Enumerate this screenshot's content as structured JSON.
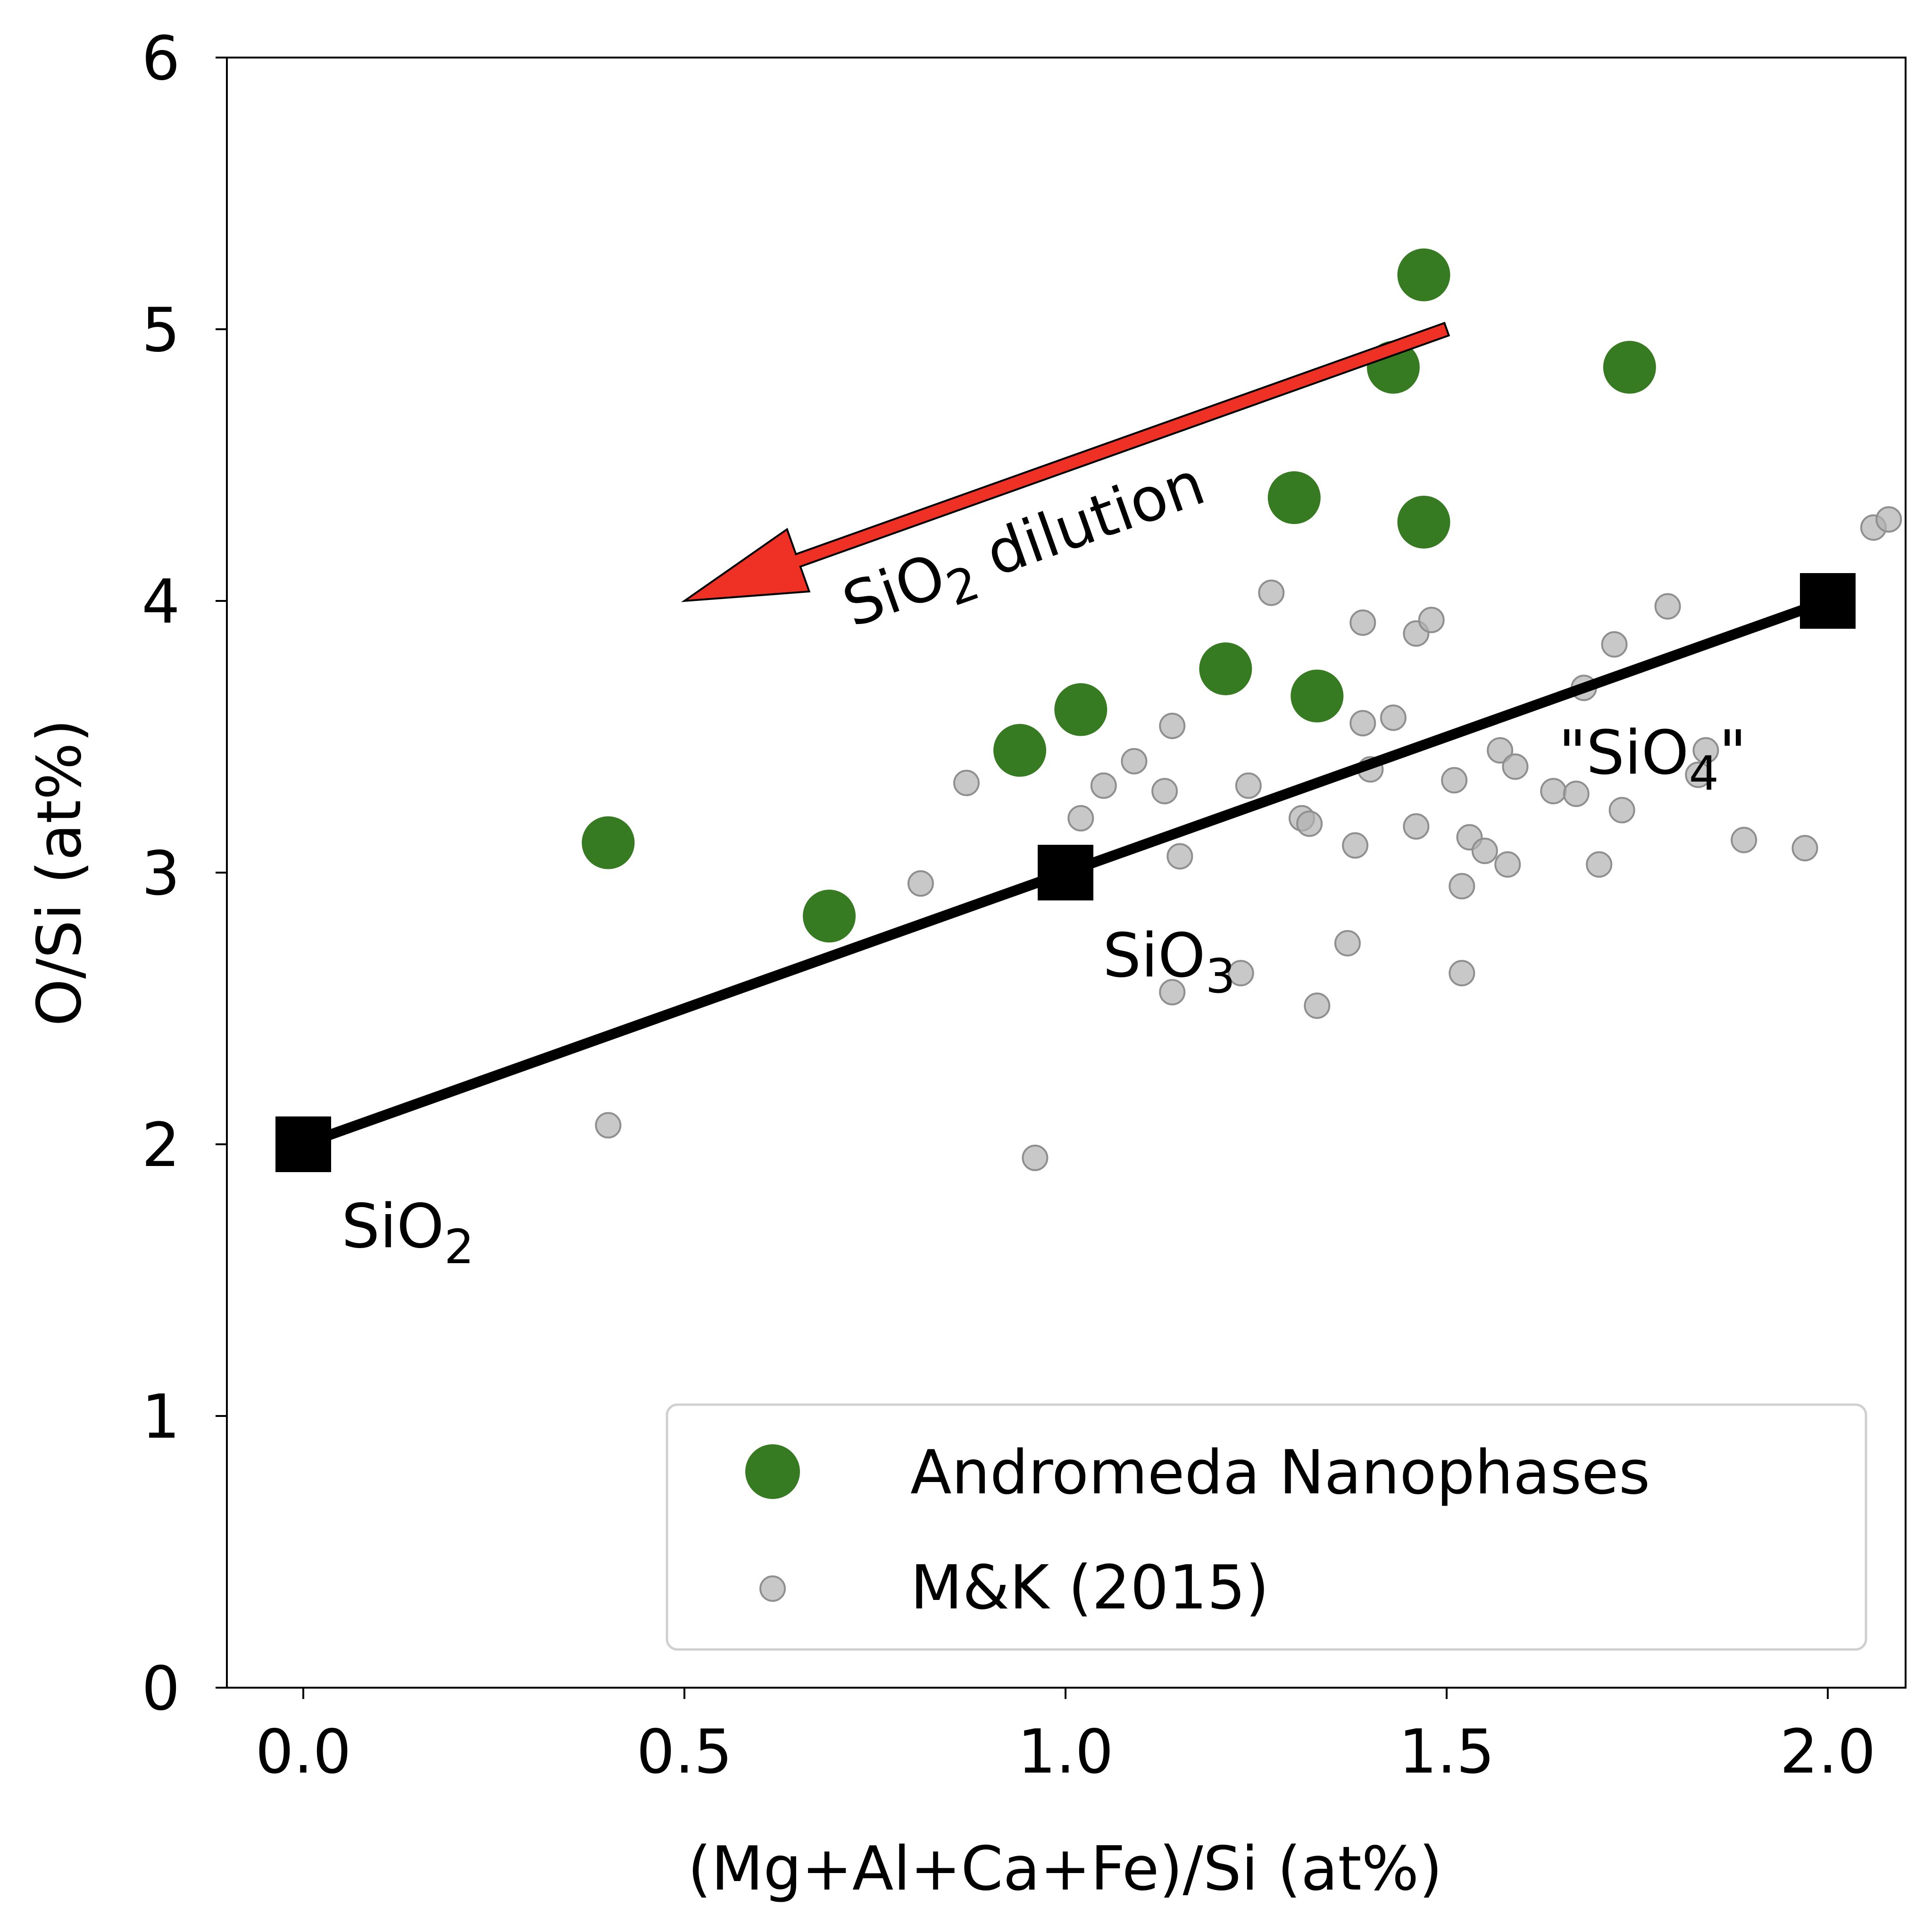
{
  "chart_data": {
    "type": "scatter",
    "title": "",
    "xlabel": "(Mg+Al+Ca+Fe)/Si (at%)",
    "ylabel": "O/Si (at%)",
    "xlim": [
      -0.1,
      2.1
    ],
    "ylim": [
      0,
      6
    ],
    "xticks": [
      0.0,
      0.5,
      1.0,
      1.5,
      2.0
    ],
    "xtick_labels": [
      "0.0",
      "0.5",
      "1.0",
      "1.5",
      "2.0"
    ],
    "yticks": [
      0,
      1,
      2,
      3,
      4,
      5,
      6
    ],
    "ytick_labels": [
      "0",
      "1",
      "2",
      "3",
      "4",
      "5",
      "6"
    ],
    "grid": false,
    "legend_position": "bottom-right",
    "series": [
      {
        "name": "Andromeda Nanophases",
        "color": "#367a21",
        "marker": "circle-large",
        "x": [
          0.4,
          0.69,
          0.94,
          1.02,
          1.21,
          1.3,
          1.33,
          1.43,
          1.47,
          1.47,
          1.74
        ],
        "y": [
          3.11,
          2.84,
          3.45,
          3.6,
          3.75,
          4.38,
          3.65,
          4.86,
          5.2,
          4.29,
          4.86
        ]
      },
      {
        "name": "M&K (2015)",
        "color": "#b0b0b0",
        "marker": "circle-small",
        "x": [
          0.4,
          0.81,
          0.87,
          0.96,
          1.02,
          1.05,
          1.09,
          1.13,
          1.14,
          1.14,
          1.15,
          1.23,
          1.24,
          1.27,
          1.31,
          1.32,
          1.33,
          1.37,
          1.38,
          1.39,
          1.39,
          1.4,
          1.43,
          1.46,
          1.46,
          1.48,
          1.51,
          1.52,
          1.52,
          1.53,
          1.55,
          1.57,
          1.58,
          1.59,
          1.64,
          1.67,
          1.68,
          1.7,
          1.72,
          1.73,
          1.79,
          1.83,
          1.84,
          1.89,
          1.97,
          2.06,
          2.08
        ],
        "y": [
          2.07,
          2.96,
          3.33,
          1.95,
          3.2,
          3.32,
          3.41,
          3.3,
          2.56,
          3.54,
          3.06,
          2.63,
          3.32,
          4.03,
          3.2,
          3.18,
          2.51,
          2.74,
          3.1,
          3.92,
          3.55,
          3.38,
          3.57,
          3.88,
          3.17,
          3.93,
          3.34,
          2.95,
          2.63,
          3.13,
          3.08,
          3.45,
          3.03,
          3.39,
          3.3,
          3.29,
          3.68,
          3.03,
          3.84,
          3.23,
          3.98,
          3.36,
          3.45,
          3.12,
          3.09,
          4.27,
          4.3
        ]
      }
    ],
    "reference_line": {
      "name": "SiO2-SiO3-SiO4 trend",
      "color": "#000000",
      "points": [
        {
          "x": 0,
          "y": 2,
          "label": "SiO",
          "sub": "2"
        },
        {
          "x": 1,
          "y": 3,
          "label": "SiO",
          "sub": "3"
        },
        {
          "x": 2,
          "y": 4,
          "label": "\"SiO",
          "sub": "4",
          "suffix": "\""
        }
      ]
    },
    "arrow": {
      "color": "#ee3124",
      "from": {
        "x": 1.5,
        "y": 5.0
      },
      "to": {
        "x": 0.5,
        "y": 4.0
      },
      "label": "SiO",
      "label_sub": "2",
      "label_rest": " dilution"
    }
  }
}
